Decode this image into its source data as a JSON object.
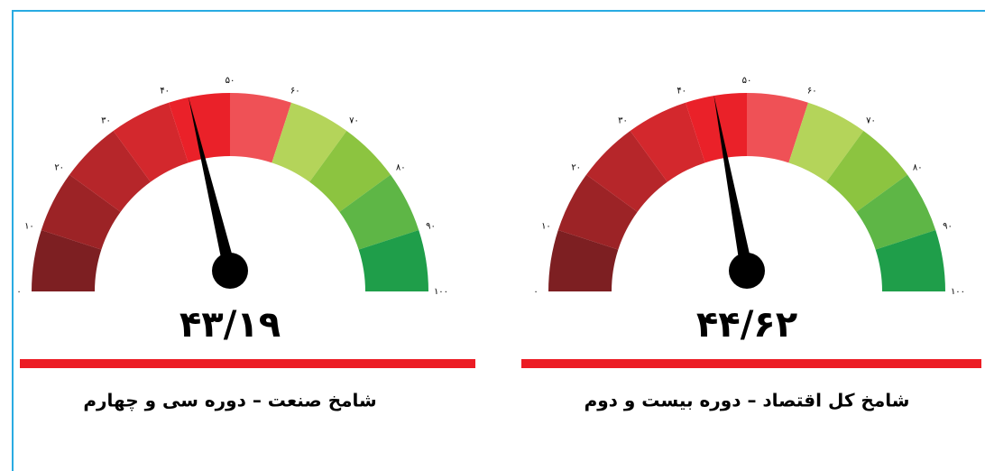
{
  "chart_data": [
    {
      "type": "gauge",
      "title": "شامخ صنعت – دوره سی و چهارم",
      "values": [
        43.19
      ],
      "value_labels": [
        "۴۳/۱۹"
      ],
      "ylim": [
        0,
        100
      ],
      "yticks": [
        {
          "value": 0,
          "label": "۰"
        },
        {
          "value": 10,
          "label": "۱۰"
        },
        {
          "value": 20,
          "label": "۲۰"
        },
        {
          "value": 30,
          "label": "۳۰"
        },
        {
          "value": 40,
          "label": "۴۰"
        },
        {
          "value": 50,
          "label": "۵۰"
        },
        {
          "value": 60,
          "label": "۶۰"
        },
        {
          "value": 70,
          "label": "۷۰"
        },
        {
          "value": 80,
          "label": "۸۰"
        },
        {
          "value": 90,
          "label": "۹۰"
        },
        {
          "value": 100,
          "label": "۱۰۰"
        }
      ],
      "colors": [
        "#7d1f22",
        "#9c2326",
        "#b6262a",
        "#d3282d",
        "#ea2129",
        "#ef5156",
        "#b4d45a",
        "#8cc440",
        "#5eb646",
        "#1f9e4a"
      ]
    },
    {
      "type": "gauge",
      "title": "شامخ کل اقتصاد – دوره بیست و دوم",
      "values": [
        44.62
      ],
      "value_labels": [
        "۴۴/۶۲"
      ],
      "ylim": [
        0,
        100
      ],
      "yticks": [
        {
          "value": 0,
          "label": "۰"
        },
        {
          "value": 10,
          "label": "۱۰"
        },
        {
          "value": 20,
          "label": "۲۰"
        },
        {
          "value": 30,
          "label": "۳۰"
        },
        {
          "value": 40,
          "label": "۴۰"
        },
        {
          "value": 50,
          "label": "۵۰"
        },
        {
          "value": 60,
          "label": "۶۰"
        },
        {
          "value": 70,
          "label": "۷۰"
        },
        {
          "value": 80,
          "label": "۸۰"
        },
        {
          "value": 90,
          "label": "۹۰"
        },
        {
          "value": 100,
          "label": "۱۰۰"
        }
      ],
      "colors": [
        "#7d1f22",
        "#9c2326",
        "#b6262a",
        "#d3282d",
        "#ea2129",
        "#ef5156",
        "#b4d45a",
        "#8cc440",
        "#5eb646",
        "#1f9e4a"
      ]
    }
  ]
}
